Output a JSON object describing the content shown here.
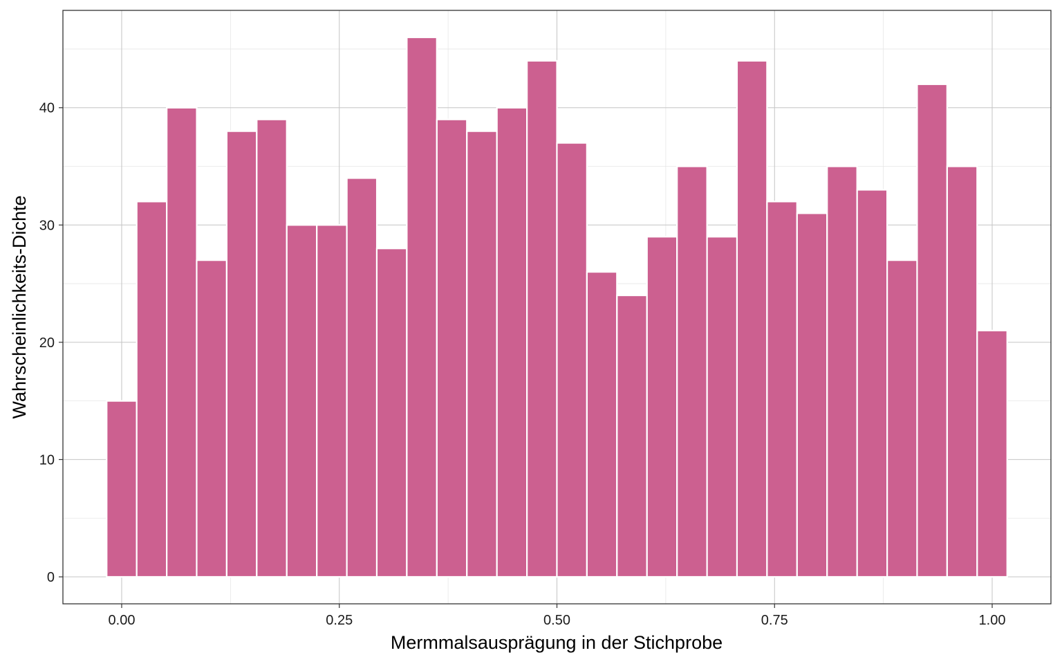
{
  "chart_data": {
    "type": "bar",
    "title": "",
    "xlabel": "Mermmalsausprägung in der Stichprobe",
    "ylabel": "Wahrscheinlichkeits-Dichte",
    "bin_width": 0.03448,
    "bin_centers": [
      0.0,
      0.0345,
      0.069,
      0.1034,
      0.1379,
      0.1724,
      0.2069,
      0.2414,
      0.2759,
      0.3103,
      0.3448,
      0.3793,
      0.4138,
      0.4483,
      0.4828,
      0.5172,
      0.5517,
      0.5862,
      0.6207,
      0.6552,
      0.6897,
      0.7241,
      0.7586,
      0.7931,
      0.8276,
      0.8621,
      0.8966,
      0.931,
      0.9655,
      1.0
    ],
    "values": [
      15,
      32,
      40,
      27,
      38,
      39,
      30,
      30,
      34,
      28,
      46,
      39,
      38,
      40,
      44,
      37,
      26,
      24,
      29,
      35,
      29,
      44,
      32,
      31,
      35,
      33,
      27,
      42,
      35,
      21
    ],
    "xlim": [
      -0.0675,
      1.0675
    ],
    "ylim": [
      -2.3,
      48.3
    ],
    "x_ticks": [
      0.0,
      0.25,
      0.5,
      0.75,
      1.0
    ],
    "x_tick_labels": [
      "0.00",
      "0.25",
      "0.50",
      "0.75",
      "1.00"
    ],
    "y_ticks": [
      0,
      10,
      20,
      30,
      40
    ],
    "y_tick_labels": [
      "0",
      "10",
      "20",
      "30",
      "40"
    ],
    "grid": true,
    "bar_color": "#CC6090",
    "bar_outline_color": "#ffffff"
  }
}
